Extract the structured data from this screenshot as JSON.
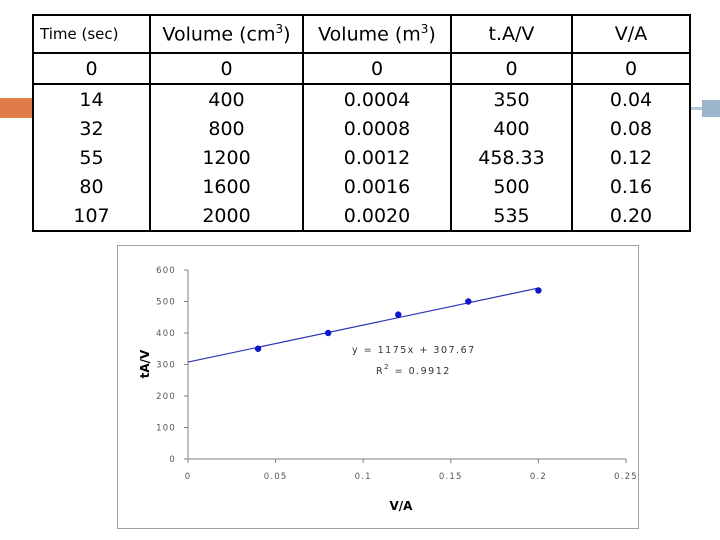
{
  "table": {
    "headers": [
      "Time (sec)",
      "Volume (cm3)",
      "Volume (m3)",
      "t.A/V",
      "V/A"
    ],
    "rows": [
      [
        "0",
        "0",
        "0",
        "0",
        "0"
      ],
      [
        "14",
        "400",
        "0.0004",
        "350",
        "0.04"
      ],
      [
        "32",
        "800",
        "0.0008",
        "400",
        "0.08"
      ],
      [
        "55",
        "1200",
        "0.0012",
        "458.33",
        "0.12"
      ],
      [
        "80",
        "1600",
        "0.0016",
        "500",
        "0.16"
      ],
      [
        "107",
        "2000",
        "0.0020",
        "535",
        "0.20"
      ]
    ]
  },
  "chart_data": {
    "type": "scatter",
    "x": [
      0.04,
      0.08,
      0.12,
      0.16,
      0.2
    ],
    "y": [
      350,
      400,
      458.33,
      500,
      535
    ],
    "xlabel": "V/A",
    "ylabel": "tA/V",
    "xlim": [
      0,
      0.25
    ],
    "ylim": [
      0,
      600
    ],
    "xticks": [
      "0",
      "0.05",
      "0.1",
      "0.15",
      "0.2",
      "0.25"
    ],
    "yticks": [
      "0",
      "100",
      "200",
      "300",
      "400",
      "500",
      "600"
    ],
    "trendline": {
      "slope": 1175,
      "intercept": 307.67,
      "x_range": [
        0,
        0.2
      ]
    },
    "equation_text": "y = 1175x + 307.67",
    "r2_label": "R",
    "r2_value_text": " = 0.9912",
    "r2_superscript": "2",
    "point_color": "#0b17c8",
    "line_color": "#2b35b5",
    "grid": false
  },
  "colors": {
    "accent_orange": "#e07b4a",
    "accent_blue": "#9cb4cc"
  }
}
